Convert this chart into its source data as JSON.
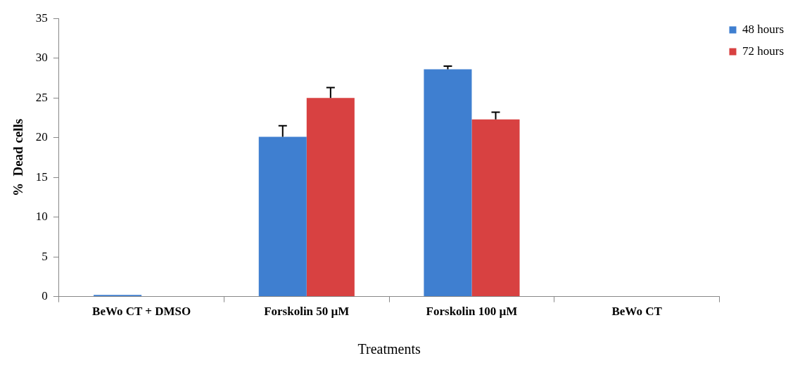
{
  "chart_data": {
    "type": "bar",
    "xlabel": "Treatments",
    "ylabel": "%  Dead cells",
    "categories": [
      "BeWo CT + DMSO",
      "Forskolin 50 µM",
      "Forskolin 100 µM",
      "BeWo CT"
    ],
    "series": [
      {
        "name": "48 hours",
        "color": "#3f7fd0",
        "values": [
          0.2,
          20.1,
          28.6,
          0
        ],
        "errors": [
          null,
          [
            20.1,
            21.5
          ],
          [
            28.6,
            29.0
          ],
          null
        ]
      },
      {
        "name": "72 hours",
        "color": "#d84141",
        "values": [
          0,
          25.0,
          22.3,
          0
        ],
        "errors": [
          null,
          [
            25.0,
            26.3
          ],
          [
            22.3,
            23.2
          ],
          null
        ]
      }
    ],
    "ylim": [
      0,
      35
    ],
    "yticks": [
      0,
      5,
      10,
      15,
      20,
      25,
      30,
      35
    ],
    "grid": false,
    "legend": "top right"
  }
}
